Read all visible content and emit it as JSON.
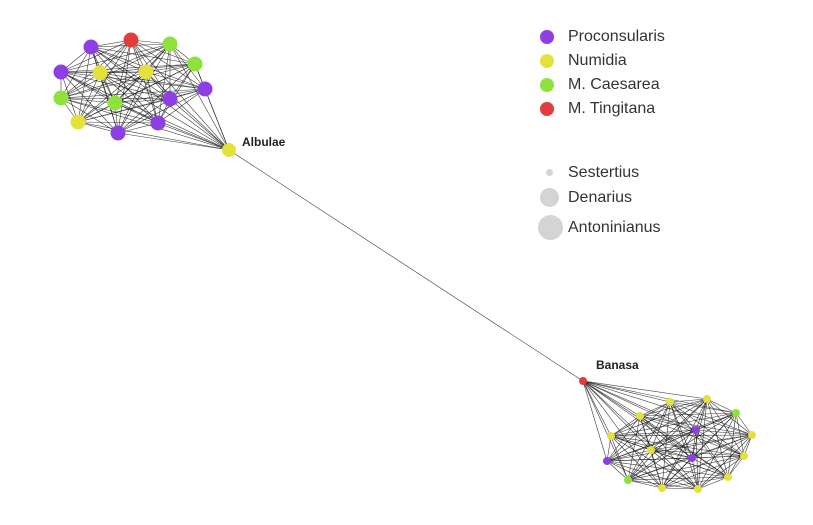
{
  "legend": {
    "regions": [
      {
        "label": "Proconsularis",
        "color": "#8e3fe3"
      },
      {
        "label": "Numidia",
        "color": "#e3e23c"
      },
      {
        "label": "M. Caesarea",
        "color": "#8de23c"
      },
      {
        "label": "M. Tingitana",
        "color": "#e23c3c"
      }
    ],
    "sizes": [
      {
        "label": "Sestertius"
      },
      {
        "label": "Denarius"
      },
      {
        "label": "Antoninianus"
      }
    ]
  },
  "hubs": {
    "albulae": {
      "label": "Albulae",
      "region": "Numidia"
    },
    "banasa": {
      "label": "Banasa",
      "region": "M. Tingitana"
    }
  }
}
